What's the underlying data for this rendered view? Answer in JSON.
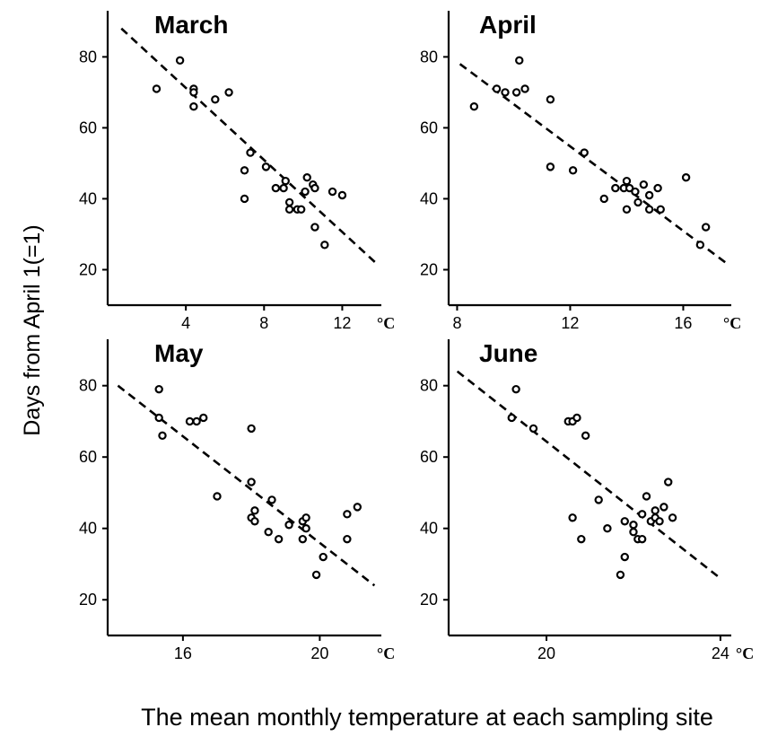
{
  "figure": {
    "ylabel": "Days from April 1(=1)",
    "xlabel": "The mean monthly temperature at each sampling site"
  },
  "chart_data": [
    {
      "type": "scatter",
      "title": "March",
      "x_unit": "°C",
      "xlim": [
        0,
        14
      ],
      "ylim": [
        10,
        93
      ],
      "xticks": [
        4,
        8,
        12
      ],
      "yticks": [
        20,
        40,
        60,
        80
      ],
      "trendline": {
        "style": "dashed",
        "from": [
          0.7,
          88
        ],
        "to": [
          13.7,
          22
        ]
      },
      "points": [
        {
          "x": 2.5,
          "y": 71
        },
        {
          "x": 3.7,
          "y": 79
        },
        {
          "x": 4.4,
          "y": 71
        },
        {
          "x": 4.4,
          "y": 70
        },
        {
          "x": 4.4,
          "y": 66
        },
        {
          "x": 5.5,
          "y": 68
        },
        {
          "x": 6.2,
          "y": 70
        },
        {
          "x": 7.3,
          "y": 53
        },
        {
          "x": 7.0,
          "y": 48
        },
        {
          "x": 7.0,
          "y": 40
        },
        {
          "x": 8.1,
          "y": 49
        },
        {
          "x": 8.6,
          "y": 43
        },
        {
          "x": 9.0,
          "y": 43
        },
        {
          "x": 9.1,
          "y": 45
        },
        {
          "x": 9.3,
          "y": 39
        },
        {
          "x": 9.3,
          "y": 37
        },
        {
          "x": 9.7,
          "y": 37
        },
        {
          "x": 9.9,
          "y": 37
        },
        {
          "x": 10.1,
          "y": 42
        },
        {
          "x": 10.2,
          "y": 46
        },
        {
          "x": 10.5,
          "y": 44
        },
        {
          "x": 10.6,
          "y": 43
        },
        {
          "x": 10.6,
          "y": 32
        },
        {
          "x": 11.1,
          "y": 27
        },
        {
          "x": 11.5,
          "y": 42
        },
        {
          "x": 12.0,
          "y": 41
        }
      ]
    },
    {
      "type": "scatter",
      "title": "April",
      "x_unit": "°C",
      "xlim": [
        7.7,
        17.7
      ],
      "ylim": [
        10,
        93
      ],
      "xticks": [
        8,
        12,
        16
      ],
      "yticks": [
        20,
        40,
        60,
        80
      ],
      "trendline": {
        "style": "dashed",
        "from": [
          8.1,
          78
        ],
        "to": [
          17.5,
          22
        ]
      },
      "points": [
        {
          "x": 8.6,
          "y": 66
        },
        {
          "x": 9.4,
          "y": 71
        },
        {
          "x": 9.7,
          "y": 70
        },
        {
          "x": 10.1,
          "y": 70
        },
        {
          "x": 10.2,
          "y": 79
        },
        {
          "x": 10.4,
          "y": 71
        },
        {
          "x": 11.3,
          "y": 68
        },
        {
          "x": 11.3,
          "y": 49
        },
        {
          "x": 12.1,
          "y": 48
        },
        {
          "x": 12.5,
          "y": 53
        },
        {
          "x": 13.2,
          "y": 40
        },
        {
          "x": 13.6,
          "y": 43
        },
        {
          "x": 13.9,
          "y": 43
        },
        {
          "x": 14.0,
          "y": 45
        },
        {
          "x": 14.0,
          "y": 37
        },
        {
          "x": 14.1,
          "y": 43
        },
        {
          "x": 14.3,
          "y": 42
        },
        {
          "x": 14.4,
          "y": 39
        },
        {
          "x": 14.6,
          "y": 44
        },
        {
          "x": 14.8,
          "y": 41
        },
        {
          "x": 14.8,
          "y": 37
        },
        {
          "x": 15.1,
          "y": 43
        },
        {
          "x": 15.2,
          "y": 37
        },
        {
          "x": 16.1,
          "y": 46
        },
        {
          "x": 16.6,
          "y": 27
        },
        {
          "x": 16.8,
          "y": 32
        }
      ]
    },
    {
      "type": "scatter",
      "title": "May",
      "x_unit": "°C",
      "xlim": [
        13.8,
        21.8
      ],
      "ylim": [
        10,
        93
      ],
      "xticks": [
        16,
        20
      ],
      "yticks": [
        20,
        40,
        60,
        80
      ],
      "trendline": {
        "style": "dashed",
        "from": [
          14.1,
          80
        ],
        "to": [
          21.6,
          24
        ]
      },
      "points": [
        {
          "x": 15.3,
          "y": 79
        },
        {
          "x": 15.3,
          "y": 71
        },
        {
          "x": 15.4,
          "y": 66
        },
        {
          "x": 16.2,
          "y": 70
        },
        {
          "x": 16.4,
          "y": 70
        },
        {
          "x": 16.6,
          "y": 71
        },
        {
          "x": 17.0,
          "y": 49
        },
        {
          "x": 18.0,
          "y": 68
        },
        {
          "x": 18.0,
          "y": 53
        },
        {
          "x": 18.0,
          "y": 43
        },
        {
          "x": 18.1,
          "y": 45
        },
        {
          "x": 18.1,
          "y": 42
        },
        {
          "x": 18.5,
          "y": 39
        },
        {
          "x": 18.6,
          "y": 48
        },
        {
          "x": 18.8,
          "y": 37
        },
        {
          "x": 19.1,
          "y": 41
        },
        {
          "x": 19.5,
          "y": 42
        },
        {
          "x": 19.5,
          "y": 37
        },
        {
          "x": 19.6,
          "y": 43
        },
        {
          "x": 19.6,
          "y": 40
        },
        {
          "x": 19.9,
          "y": 27
        },
        {
          "x": 20.1,
          "y": 32
        },
        {
          "x": 20.8,
          "y": 44
        },
        {
          "x": 20.8,
          "y": 37
        },
        {
          "x": 21.1,
          "y": 46
        }
      ]
    },
    {
      "type": "scatter",
      "title": "June",
      "x_unit": "°C",
      "xlim": [
        17.75,
        24.25
      ],
      "ylim": [
        10,
        93
      ],
      "xticks": [
        20,
        24
      ],
      "yticks": [
        20,
        40,
        60,
        80
      ],
      "trendline": {
        "style": "dashed",
        "from": [
          17.95,
          84
        ],
        "to": [
          24.0,
          26
        ]
      },
      "points": [
        {
          "x": 19.2,
          "y": 71
        },
        {
          "x": 19.3,
          "y": 79
        },
        {
          "x": 19.7,
          "y": 68
        },
        {
          "x": 20.5,
          "y": 70
        },
        {
          "x": 20.6,
          "y": 70
        },
        {
          "x": 20.7,
          "y": 71
        },
        {
          "x": 20.9,
          "y": 66
        },
        {
          "x": 20.6,
          "y": 43
        },
        {
          "x": 20.8,
          "y": 37
        },
        {
          "x": 21.2,
          "y": 48
        },
        {
          "x": 21.4,
          "y": 40
        },
        {
          "x": 21.7,
          "y": 27
        },
        {
          "x": 21.8,
          "y": 42
        },
        {
          "x": 21.8,
          "y": 32
        },
        {
          "x": 22.0,
          "y": 41
        },
        {
          "x": 22.0,
          "y": 39
        },
        {
          "x": 22.1,
          "y": 37
        },
        {
          "x": 22.2,
          "y": 44
        },
        {
          "x": 22.2,
          "y": 37
        },
        {
          "x": 22.3,
          "y": 49
        },
        {
          "x": 22.4,
          "y": 42
        },
        {
          "x": 22.5,
          "y": 45
        },
        {
          "x": 22.5,
          "y": 43
        },
        {
          "x": 22.6,
          "y": 42
        },
        {
          "x": 22.7,
          "y": 46
        },
        {
          "x": 22.8,
          "y": 53
        },
        {
          "x": 22.9,
          "y": 43
        }
      ]
    }
  ]
}
